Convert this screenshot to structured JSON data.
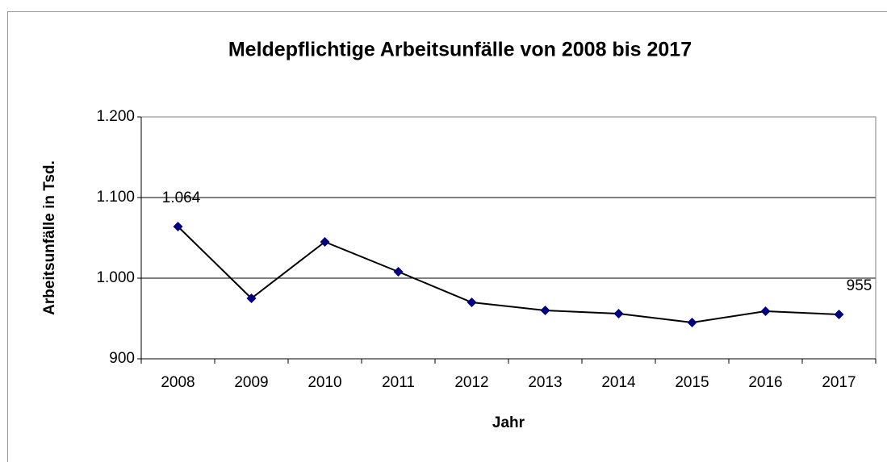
{
  "chart_data": {
    "type": "line",
    "title": "Meldepflichtige Arbeitsunfälle von 2008 bis 2017",
    "x_label": "Jahr",
    "y_label": "Arbeitsunfälle in Tsd.",
    "categories": [
      "2008",
      "2009",
      "2010",
      "2011",
      "2012",
      "2013",
      "2014",
      "2015",
      "2016",
      "2017"
    ],
    "series": [
      {
        "name": "Arbeitsunfälle",
        "color": "#000080",
        "values": [
          1064,
          975,
          1045,
          1008,
          970,
          960,
          956,
          945,
          959,
          955
        ],
        "value_labels": [
          "1.064",
          null,
          null,
          null,
          null,
          null,
          null,
          null,
          null,
          "955"
        ]
      }
    ],
    "ylim": [
      900,
      1200
    ],
    "yticks": [
      {
        "value": 900,
        "label": "900"
      },
      {
        "value": 1000,
        "label": "1.000"
      },
      {
        "value": 1100,
        "label": "1.100"
      },
      {
        "value": 1200,
        "label": "1.200"
      }
    ],
    "grid": true
  }
}
